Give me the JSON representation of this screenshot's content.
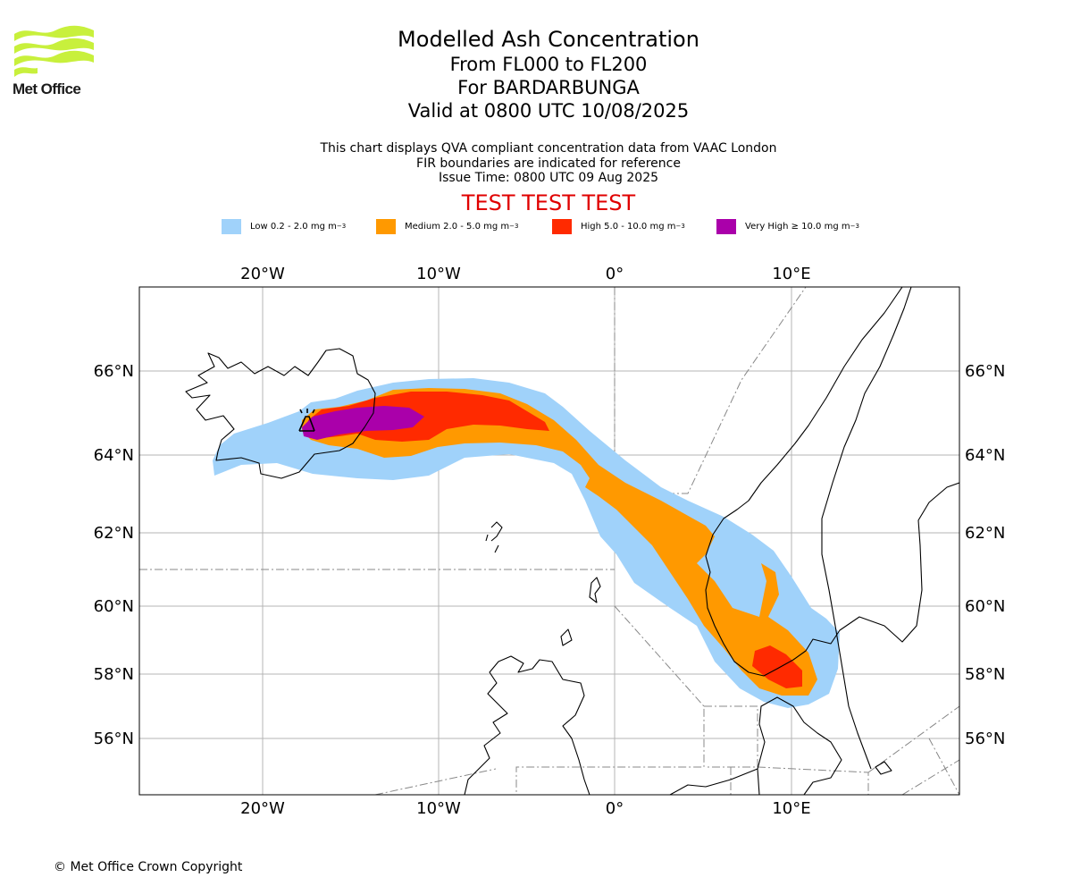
{
  "branding": {
    "logo_text": "Met Office",
    "logo_color": "#c8f03c"
  },
  "header": {
    "title": "Modelled Ash Concentration",
    "flight_levels": "From FL000 to FL200",
    "volcano": "For BARDARBUNGA",
    "valid_time": "Valid at 0800 UTC 10/08/2025"
  },
  "notes": {
    "line1": "This chart displays QVA compliant concentration data from VAAC London",
    "line2": "FIR boundaries are indicated for reference",
    "issue_time": "Issue Time: 0800 UTC 09 Aug 2025"
  },
  "test_banner": "TEST TEST TEST",
  "legend": [
    {
      "label": "Low 0.2 - 2.0 mg m",
      "sup": "−3",
      "color": "#a0d2fa"
    },
    {
      "label": "Medium 2.0 - 5.0 mg m",
      "sup": "−3",
      "color": "#ff9900"
    },
    {
      "label": "High 5.0 - 10.0 mg m",
      "sup": "−3",
      "color": "#ff2a00"
    },
    {
      "label": "Very High  ≥  10.0 mg m",
      "sup": "−3",
      "color": "#aa00aa"
    }
  ],
  "map": {
    "lon_labels": [
      "20°W",
      "10°W",
      "0°",
      "10°E"
    ],
    "lat_labels": [
      "66°N",
      "64°N",
      "62°N",
      "60°N",
      "58°N",
      "56°N"
    ],
    "volcano_marker": "volcano-icon"
  },
  "footer": {
    "copyright": "© Met Office Crown Copyright"
  }
}
